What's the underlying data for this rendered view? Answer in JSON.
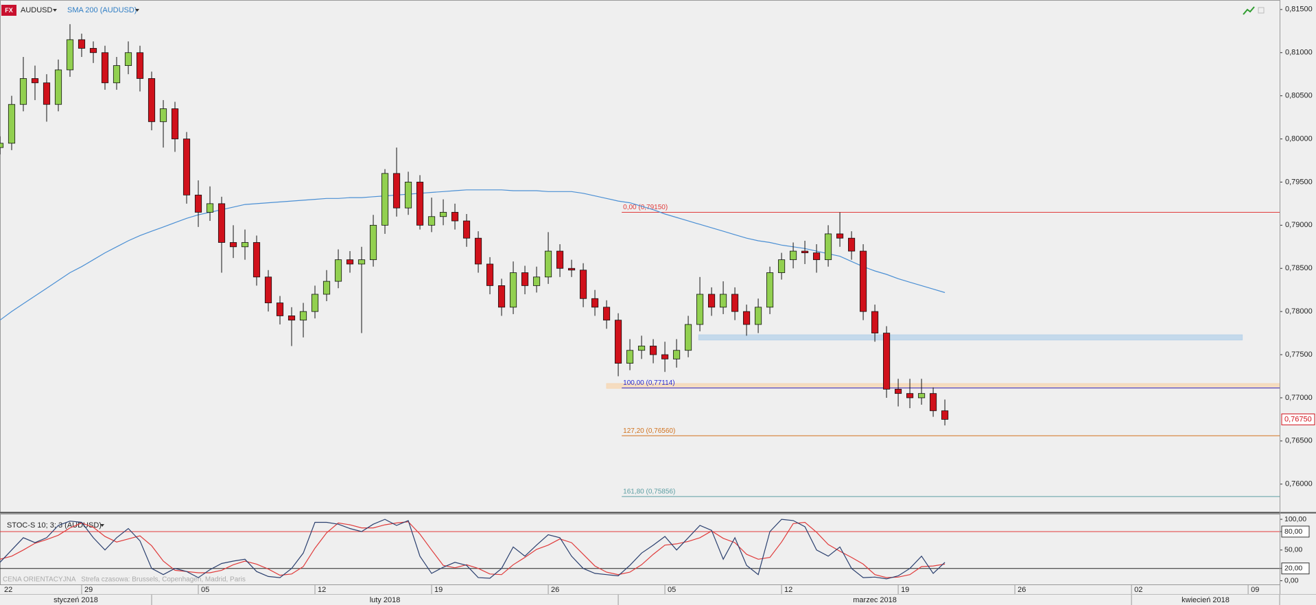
{
  "chart_data": {
    "type": "candlestick",
    "badge": "FX",
    "symbol": "AUDUSD",
    "x": [
      3,
      4,
      5,
      6,
      7,
      8,
      9,
      10,
      11,
      12,
      13,
      14,
      15,
      16,
      17,
      18,
      19,
      20,
      21,
      22,
      23,
      24,
      25,
      26,
      27,
      28,
      29,
      30,
      31,
      32,
      33,
      34,
      35,
      36,
      37,
      38,
      39,
      40,
      41,
      42,
      43,
      44,
      45,
      46,
      47,
      48,
      49,
      50,
      51,
      52,
      53,
      54,
      55,
      56,
      57,
      58,
      59,
      60,
      61,
      62,
      63,
      64,
      65,
      66,
      67,
      68,
      69,
      70,
      71,
      72,
      73,
      74,
      75,
      76,
      77,
      78,
      79,
      80,
      81,
      82,
      83,
      84
    ],
    "ohlc": [
      [
        0.799,
        0.8003,
        0.7982,
        0.7995
      ],
      [
        0.7995,
        0.805,
        0.7987,
        0.804
      ],
      [
        0.804,
        0.8095,
        0.8032,
        0.807
      ],
      [
        0.807,
        0.8085,
        0.8045,
        0.8065
      ],
      [
        0.8065,
        0.8075,
        0.802,
        0.804
      ],
      [
        0.804,
        0.8092,
        0.8032,
        0.808
      ],
      [
        0.808,
        0.8133,
        0.8072,
        0.8115
      ],
      [
        0.8115,
        0.8122,
        0.8095,
        0.8105
      ],
      [
        0.8105,
        0.8113,
        0.8088,
        0.81
      ],
      [
        0.81,
        0.8108,
        0.8057,
        0.8065
      ],
      [
        0.8065,
        0.8095,
        0.8057,
        0.8085
      ],
      [
        0.8085,
        0.8113,
        0.8075,
        0.81
      ],
      [
        0.81,
        0.8108,
        0.8055,
        0.807
      ],
      [
        0.807,
        0.8078,
        0.801,
        0.802
      ],
      [
        0.802,
        0.8045,
        0.799,
        0.8035
      ],
      [
        0.8035,
        0.8043,
        0.7985,
        0.8
      ],
      [
        0.8,
        0.8008,
        0.7925,
        0.7935
      ],
      [
        0.7935,
        0.7952,
        0.7898,
        0.7915
      ],
      [
        0.7915,
        0.7945,
        0.7905,
        0.7925
      ],
      [
        0.7925,
        0.7933,
        0.7845,
        0.788
      ],
      [
        0.788,
        0.79,
        0.7862,
        0.7875
      ],
      [
        0.7875,
        0.7895,
        0.786,
        0.788
      ],
      [
        0.788,
        0.7888,
        0.783,
        0.784
      ],
      [
        0.784,
        0.7848,
        0.78,
        0.781
      ],
      [
        0.781,
        0.7818,
        0.7785,
        0.7795
      ],
      [
        0.7795,
        0.7805,
        0.776,
        0.779
      ],
      [
        0.779,
        0.781,
        0.777,
        0.78
      ],
      [
        0.78,
        0.783,
        0.7792,
        0.782
      ],
      [
        0.782,
        0.7848,
        0.7812,
        0.7835
      ],
      [
        0.7835,
        0.7872,
        0.7827,
        0.786
      ],
      [
        0.786,
        0.787,
        0.7845,
        0.7855
      ],
      [
        0.7855,
        0.7875,
        0.7775,
        0.786
      ],
      [
        0.786,
        0.7912,
        0.7852,
        0.79
      ],
      [
        0.79,
        0.7965,
        0.789,
        0.796
      ],
      [
        0.796,
        0.799,
        0.791,
        0.792
      ],
      [
        0.792,
        0.7962,
        0.7912,
        0.795
      ],
      [
        0.795,
        0.7958,
        0.7895,
        0.79
      ],
      [
        0.79,
        0.7932,
        0.7892,
        0.791
      ],
      [
        0.791,
        0.793,
        0.79,
        0.7915
      ],
      [
        0.7915,
        0.7925,
        0.7895,
        0.7905
      ],
      [
        0.7905,
        0.7913,
        0.7875,
        0.7885
      ],
      [
        0.7885,
        0.7893,
        0.7845,
        0.7855
      ],
      [
        0.7855,
        0.7863,
        0.782,
        0.783
      ],
      [
        0.783,
        0.7838,
        0.7795,
        0.7805
      ],
      [
        0.7805,
        0.7858,
        0.7797,
        0.7845
      ],
      [
        0.7845,
        0.7853,
        0.782,
        0.783
      ],
      [
        0.783,
        0.7852,
        0.7822,
        0.784
      ],
      [
        0.784,
        0.7892,
        0.7832,
        0.787
      ],
      [
        0.787,
        0.7878,
        0.784,
        0.785
      ],
      [
        0.785,
        0.786,
        0.784,
        0.7848
      ],
      [
        0.7848,
        0.7856,
        0.7805,
        0.7815
      ],
      [
        0.7815,
        0.7825,
        0.7795,
        0.7805
      ],
      [
        0.7805,
        0.7813,
        0.778,
        0.779
      ],
      [
        0.779,
        0.7798,
        0.7725,
        0.774
      ],
      [
        0.774,
        0.7768,
        0.7732,
        0.7755
      ],
      [
        0.7755,
        0.7772,
        0.7745,
        0.776
      ],
      [
        0.776,
        0.7768,
        0.774,
        0.775
      ],
      [
        0.775,
        0.7765,
        0.773,
        0.7745
      ],
      [
        0.7745,
        0.7768,
        0.7735,
        0.7755
      ],
      [
        0.7755,
        0.7795,
        0.7747,
        0.7785
      ],
      [
        0.7785,
        0.784,
        0.7777,
        0.782
      ],
      [
        0.782,
        0.7828,
        0.7795,
        0.7805
      ],
      [
        0.7805,
        0.7835,
        0.7797,
        0.782
      ],
      [
        0.782,
        0.7828,
        0.779,
        0.78
      ],
      [
        0.78,
        0.7808,
        0.7772,
        0.7785
      ],
      [
        0.7785,
        0.7815,
        0.7775,
        0.7805
      ],
      [
        0.7805,
        0.7852,
        0.7797,
        0.7845
      ],
      [
        0.7845,
        0.7868,
        0.7837,
        0.786
      ],
      [
        0.786,
        0.788,
        0.785,
        0.787
      ],
      [
        0.787,
        0.7882,
        0.7855,
        0.7868
      ],
      [
        0.7868,
        0.7878,
        0.7845,
        0.786
      ],
      [
        0.786,
        0.79,
        0.7852,
        0.789
      ],
      [
        0.789,
        0.7915,
        0.7875,
        0.7885
      ],
      [
        0.7885,
        0.7893,
        0.786,
        0.787
      ],
      [
        0.787,
        0.7878,
        0.779,
        0.78
      ],
      [
        0.78,
        0.7808,
        0.7765,
        0.7775
      ],
      [
        0.7775,
        0.7783,
        0.77,
        0.771
      ],
      [
        0.771,
        0.7722,
        0.769,
        0.7705
      ],
      [
        0.7705,
        0.7722,
        0.7688,
        0.77
      ],
      [
        0.77,
        0.7722,
        0.7692,
        0.7705
      ],
      [
        0.7705,
        0.7712,
        0.7678,
        0.7685
      ],
      [
        0.7685,
        0.7698,
        0.7668,
        0.7675
      ]
    ],
    "up_color": "#92d050",
    "down_color": "#d0111b",
    "sma": {
      "name": "SMA 200 (AUDUSD)",
      "color": "#4a8fd4",
      "values": [
        0.779,
        0.78,
        0.7809,
        0.7818,
        0.7827,
        0.7836,
        0.7845,
        0.7852,
        0.786,
        0.7868,
        0.7875,
        0.7882,
        0.7888,
        0.7893,
        0.7898,
        0.7903,
        0.7908,
        0.7912,
        0.7915,
        0.7918,
        0.7921,
        0.7924,
        0.7925,
        0.7926,
        0.7927,
        0.7928,
        0.7929,
        0.793,
        0.7931,
        0.7931,
        0.7932,
        0.7932,
        0.7933,
        0.7934,
        0.7935,
        0.7936,
        0.7937,
        0.7938,
        0.7939,
        0.794,
        0.7941,
        0.7941,
        0.7941,
        0.7941,
        0.794,
        0.794,
        0.794,
        0.7939,
        0.7939,
        0.7939,
        0.7937,
        0.7934,
        0.7931,
        0.7928,
        0.7926,
        0.7922,
        0.7918,
        0.7913,
        0.7909,
        0.7905,
        0.7901,
        0.7897,
        0.7893,
        0.7889,
        0.7885,
        0.7882,
        0.788,
        0.7877,
        0.7875,
        0.7873,
        0.787,
        0.7867,
        0.7864,
        0.7858,
        0.7852,
        0.7847,
        0.7843,
        0.7838,
        0.7834,
        0.783,
        0.7826,
        0.7822
      ]
    },
    "xlim": [
      3,
      112.7
    ],
    "ylim": [
      0.7568,
      0.8161
    ],
    "yticks": [
      {
        "value": 0.815,
        "label": "0,81500"
      },
      {
        "value": 0.81,
        "label": "0,81000"
      },
      {
        "value": 0.805,
        "label": "0,80500"
      },
      {
        "value": 0.8,
        "label": "0,80000"
      },
      {
        "value": 0.795,
        "label": "0,79500"
      },
      {
        "value": 0.79,
        "label": "0,79000"
      },
      {
        "value": 0.785,
        "label": "0,78500"
      },
      {
        "value": 0.78,
        "label": "0,78000"
      },
      {
        "value": 0.775,
        "label": "0,77500"
      },
      {
        "value": 0.77,
        "label": "0,77000"
      },
      {
        "value": 0.765,
        "label": "0,76500"
      },
      {
        "value": 0.76,
        "label": "0,76000"
      }
    ],
    "xticks": [
      {
        "value": 0,
        "label": "22"
      },
      {
        "value": 10,
        "label": "29"
      },
      {
        "value": 20,
        "label": "05"
      },
      {
        "value": 30,
        "label": "12"
      },
      {
        "value": 40,
        "label": "19"
      },
      {
        "value": 50,
        "label": "26"
      },
      {
        "value": 60,
        "label": "05"
      },
      {
        "value": 70,
        "label": "12"
      },
      {
        "value": 80,
        "label": "19"
      },
      {
        "value": 90,
        "label": "26"
      },
      {
        "value": 100,
        "label": "02"
      },
      {
        "value": 110,
        "label": "09"
      }
    ],
    "months": [
      {
        "value": 3,
        "label": "styczeń 2018"
      },
      {
        "value": 16,
        "label": "luty 2018"
      },
      {
        "value": 56,
        "label": "marzec 2018"
      },
      {
        "value": 100,
        "label": "kwiecień 2018"
      }
    ],
    "last_price": {
      "value": 0.7675,
      "label": "0,76750"
    },
    "fib_levels": [
      {
        "value": 0.7915,
        "label": "0,00 (0,79150)",
        "color": "#e03a3a",
        "start": 56.3
      },
      {
        "value": 0.77114,
        "label": "100,00 (0,77114)",
        "color": "#2b2bd0",
        "start": 56.3
      },
      {
        "value": 0.7656,
        "label": "127,20 (0,76560)",
        "color": "#d2731f",
        "start": 56.3
      },
      {
        "value": 0.75856,
        "label": "161,80 (0,75856)",
        "color": "#5c9ea3",
        "start": 56.3
      }
    ],
    "zones": [
      {
        "y": [
          0.7767,
          0.7773
        ],
        "x": [
          62.9,
          109.5
        ],
        "color": "#b9d3ea"
      },
      {
        "y": [
          0.7711,
          0.77165
        ],
        "x": [
          55,
          112.7
        ],
        "color": "#f6d7b4"
      }
    ],
    "stochastic": {
      "title": "STOC-S 10; 3; 3 (AUDUSD)",
      "ylim": [
        -6,
        109
      ],
      "yticks": [
        {
          "value": 100,
          "label": "100,00"
        },
        {
          "value": 80,
          "label": "80,00"
        },
        {
          "value": 50,
          "label": "50,00"
        },
        {
          "value": 20,
          "label": "20,00"
        },
        {
          "value": 0,
          "label": "0,00"
        }
      ],
      "levels": [
        {
          "value": 80,
          "color": "#e03a3a"
        },
        {
          "value": 20,
          "color": "#222222"
        }
      ],
      "k": {
        "color": "#2a3f6e",
        "values": [
          30,
          50,
          70,
          62,
          70,
          90,
          97,
          95,
          70,
          50,
          70,
          85,
          65,
          20,
          10,
          20,
          15,
          5,
          18,
          28,
          32,
          35,
          15,
          7,
          5,
          20,
          45,
          95,
          95,
          92,
          85,
          80,
          92,
          100,
          90,
          98,
          40,
          12,
          22,
          30,
          25,
          5,
          4,
          20,
          55,
          40,
          58,
          75,
          70,
          40,
          20,
          12,
          10,
          8,
          25,
          45,
          58,
          72,
          50,
          70,
          90,
          82,
          35,
          70,
          25,
          10,
          80,
          100,
          98,
          88,
          50,
          40,
          55,
          20,
          5,
          6,
          3,
          8,
          20,
          40,
          12,
          30
        ]
      },
      "d": {
        "color": "#e03a3a",
        "values": [
          35,
          40,
          50,
          61,
          67,
          74,
          86,
          94,
          87,
          72,
          63,
          68,
          73,
          57,
          32,
          17,
          15,
          13,
          13,
          17,
          26,
          32,
          27,
          19,
          9,
          11,
          23,
          53,
          78,
          94,
          91,
          86,
          86,
          91,
          94,
          96,
          76,
          50,
          25,
          21,
          26,
          20,
          11,
          10,
          26,
          38,
          51,
          58,
          68,
          62,
          43,
          24,
          14,
          10,
          14,
          26,
          43,
          58,
          60,
          64,
          70,
          81,
          69,
          62,
          43,
          35,
          38,
          63,
          93,
          95,
          79,
          59,
          48,
          38,
          27,
          10,
          5,
          6,
          10,
          23,
          24,
          27
        ]
      }
    },
    "footer": "CENA ORIENTACYJNA   Strefa czasowa: Brussels, Copenhagen, Madrid, Paris"
  }
}
